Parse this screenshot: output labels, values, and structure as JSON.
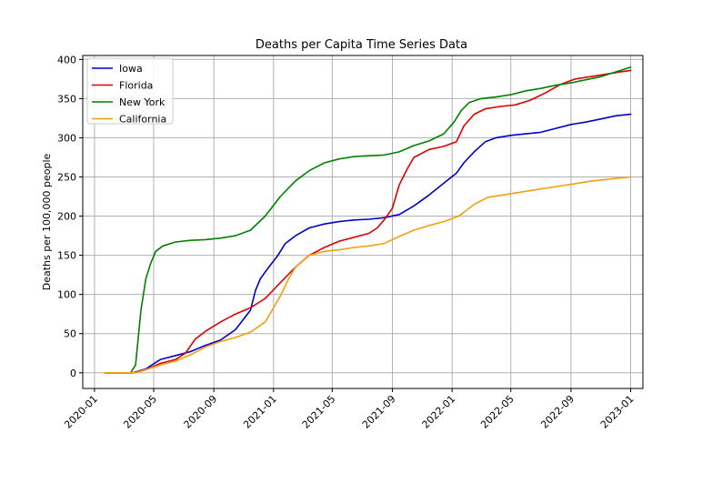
{
  "chart_data": {
    "type": "line",
    "title": "Deaths per Capita Time Series Data",
    "xlabel": "",
    "ylabel": "Deaths per 100,000 people",
    "ylim": [
      -20,
      405
    ],
    "xlim": [
      "2019-12-08",
      "2023-01-26"
    ],
    "grid": true,
    "legend_position": "top-left",
    "x_ticks": [
      {
        "date": "2020-01-01",
        "label": "2020-01"
      },
      {
        "date": "2020-05-01",
        "label": "2020-05"
      },
      {
        "date": "2020-09-01",
        "label": "2020-09"
      },
      {
        "date": "2021-01-01",
        "label": "2021-01"
      },
      {
        "date": "2021-05-01",
        "label": "2021-05"
      },
      {
        "date": "2021-09-01",
        "label": "2021-09"
      },
      {
        "date": "2022-01-01",
        "label": "2022-01"
      },
      {
        "date": "2022-05-01",
        "label": "2022-05"
      },
      {
        "date": "2022-09-01",
        "label": "2022-09"
      },
      {
        "date": "2023-01-01",
        "label": "2023-01"
      }
    ],
    "y_ticks": [
      0,
      50,
      100,
      150,
      200,
      250,
      300,
      350,
      400
    ],
    "series": [
      {
        "name": "Iowa",
        "color": "#0000cc",
        "points": [
          [
            "2020-01-22",
            0
          ],
          [
            "2020-03-20",
            0
          ],
          [
            "2020-04-15",
            5
          ],
          [
            "2020-05-15",
            17
          ],
          [
            "2020-06-15",
            22
          ],
          [
            "2020-07-15",
            27
          ],
          [
            "2020-08-15",
            35
          ],
          [
            "2020-09-15",
            42
          ],
          [
            "2020-10-15",
            55
          ],
          [
            "2020-11-15",
            80
          ],
          [
            "2020-11-25",
            105
          ],
          [
            "2020-12-05",
            120
          ],
          [
            "2020-12-20",
            133
          ],
          [
            "2021-01-10",
            150
          ],
          [
            "2021-01-25",
            165
          ],
          [
            "2021-02-15",
            175
          ],
          [
            "2021-03-15",
            185
          ],
          [
            "2021-04-15",
            190
          ],
          [
            "2021-05-15",
            193
          ],
          [
            "2021-06-15",
            195
          ],
          [
            "2021-07-15",
            196
          ],
          [
            "2021-08-15",
            198
          ],
          [
            "2021-09-15",
            202
          ],
          [
            "2021-10-15",
            213
          ],
          [
            "2021-11-15",
            227
          ],
          [
            "2021-12-15",
            242
          ],
          [
            "2022-01-10",
            255
          ],
          [
            "2022-01-25",
            268
          ],
          [
            "2022-02-15",
            282
          ],
          [
            "2022-03-10",
            295
          ],
          [
            "2022-04-01",
            300
          ],
          [
            "2022-05-01",
            303
          ],
          [
            "2022-06-01",
            305
          ],
          [
            "2022-07-01",
            307
          ],
          [
            "2022-08-01",
            312
          ],
          [
            "2022-09-01",
            317
          ],
          [
            "2022-10-01",
            320
          ],
          [
            "2022-11-01",
            324
          ],
          [
            "2022-12-01",
            328
          ],
          [
            "2023-01-01",
            330
          ]
        ]
      },
      {
        "name": "Florida",
        "color": "#dd0000",
        "points": [
          [
            "2020-01-22",
            0
          ],
          [
            "2020-03-20",
            0
          ],
          [
            "2020-04-15",
            4
          ],
          [
            "2020-05-15",
            12
          ],
          [
            "2020-06-15",
            17
          ],
          [
            "2020-07-05",
            25
          ],
          [
            "2020-07-25",
            43
          ],
          [
            "2020-08-15",
            53
          ],
          [
            "2020-09-15",
            65
          ],
          [
            "2020-10-15",
            75
          ],
          [
            "2020-11-15",
            83
          ],
          [
            "2020-12-15",
            95
          ],
          [
            "2021-01-15",
            115
          ],
          [
            "2021-02-15",
            135
          ],
          [
            "2021-03-15",
            150
          ],
          [
            "2021-04-15",
            160
          ],
          [
            "2021-05-15",
            168
          ],
          [
            "2021-06-15",
            173
          ],
          [
            "2021-07-15",
            178
          ],
          [
            "2021-08-01",
            185
          ],
          [
            "2021-08-15",
            195
          ],
          [
            "2021-09-01",
            210
          ],
          [
            "2021-09-15",
            240
          ],
          [
            "2021-10-01",
            260
          ],
          [
            "2021-10-15",
            275
          ],
          [
            "2021-11-15",
            285
          ],
          [
            "2021-12-15",
            289
          ],
          [
            "2022-01-10",
            295
          ],
          [
            "2022-01-25",
            315
          ],
          [
            "2022-02-15",
            330
          ],
          [
            "2022-03-10",
            337
          ],
          [
            "2022-04-10",
            340
          ],
          [
            "2022-05-10",
            342
          ],
          [
            "2022-06-10",
            348
          ],
          [
            "2022-07-10",
            357
          ],
          [
            "2022-08-10",
            368
          ],
          [
            "2022-09-10",
            375
          ],
          [
            "2022-10-10",
            378
          ],
          [
            "2022-11-10",
            381
          ],
          [
            "2022-12-10",
            384
          ],
          [
            "2023-01-01",
            386
          ]
        ]
      },
      {
        "name": "New York",
        "color": "#008000",
        "points": [
          [
            "2020-01-22",
            0
          ],
          [
            "2020-03-15",
            0
          ],
          [
            "2020-03-25",
            10
          ],
          [
            "2020-04-05",
            80
          ],
          [
            "2020-04-15",
            120
          ],
          [
            "2020-04-25",
            140
          ],
          [
            "2020-05-05",
            155
          ],
          [
            "2020-05-20",
            162
          ],
          [
            "2020-06-15",
            167
          ],
          [
            "2020-07-15",
            169
          ],
          [
            "2020-08-15",
            170
          ],
          [
            "2020-09-15",
            172
          ],
          [
            "2020-10-15",
            175
          ],
          [
            "2020-11-15",
            182
          ],
          [
            "2020-12-15",
            200
          ],
          [
            "2021-01-15",
            225
          ],
          [
            "2021-02-15",
            245
          ],
          [
            "2021-03-15",
            258
          ],
          [
            "2021-04-15",
            268
          ],
          [
            "2021-05-15",
            273
          ],
          [
            "2021-06-15",
            276
          ],
          [
            "2021-07-15",
            277
          ],
          [
            "2021-08-15",
            278
          ],
          [
            "2021-09-15",
            282
          ],
          [
            "2021-10-15",
            290
          ],
          [
            "2021-11-15",
            296
          ],
          [
            "2021-12-15",
            305
          ],
          [
            "2022-01-05",
            320
          ],
          [
            "2022-01-20",
            335
          ],
          [
            "2022-02-05",
            345
          ],
          [
            "2022-03-01",
            350
          ],
          [
            "2022-04-01",
            352
          ],
          [
            "2022-05-01",
            355
          ],
          [
            "2022-06-01",
            360
          ],
          [
            "2022-07-01",
            363
          ],
          [
            "2022-08-01",
            367
          ],
          [
            "2022-09-01",
            370
          ],
          [
            "2022-10-01",
            374
          ],
          [
            "2022-11-01",
            378
          ],
          [
            "2022-12-01",
            384
          ],
          [
            "2023-01-01",
            390
          ]
        ]
      },
      {
        "name": "California",
        "color": "#f0a010",
        "points": [
          [
            "2020-01-22",
            0
          ],
          [
            "2020-03-25",
            0
          ],
          [
            "2020-04-15",
            4
          ],
          [
            "2020-05-15",
            10
          ],
          [
            "2020-06-15",
            15
          ],
          [
            "2020-07-15",
            23
          ],
          [
            "2020-08-15",
            33
          ],
          [
            "2020-09-15",
            40
          ],
          [
            "2020-10-15",
            45
          ],
          [
            "2020-11-15",
            52
          ],
          [
            "2020-12-15",
            65
          ],
          [
            "2021-01-15",
            98
          ],
          [
            "2021-02-01",
            120
          ],
          [
            "2021-02-15",
            135
          ],
          [
            "2021-03-15",
            150
          ],
          [
            "2021-04-15",
            155
          ],
          [
            "2021-05-15",
            157
          ],
          [
            "2021-06-15",
            160
          ],
          [
            "2021-07-15",
            162
          ],
          [
            "2021-08-15",
            165
          ],
          [
            "2021-09-15",
            174
          ],
          [
            "2021-10-15",
            182
          ],
          [
            "2021-11-15",
            188
          ],
          [
            "2021-12-15",
            193
          ],
          [
            "2022-01-15",
            200
          ],
          [
            "2022-02-15",
            215
          ],
          [
            "2022-03-15",
            224
          ],
          [
            "2022-04-15",
            227
          ],
          [
            "2022-05-15",
            230
          ],
          [
            "2022-06-15",
            233
          ],
          [
            "2022-07-15",
            236
          ],
          [
            "2022-08-15",
            239
          ],
          [
            "2022-09-15",
            242
          ],
          [
            "2022-10-15",
            245
          ],
          [
            "2022-11-15",
            247
          ],
          [
            "2022-12-15",
            249
          ],
          [
            "2023-01-01",
            250
          ]
        ]
      }
    ]
  }
}
